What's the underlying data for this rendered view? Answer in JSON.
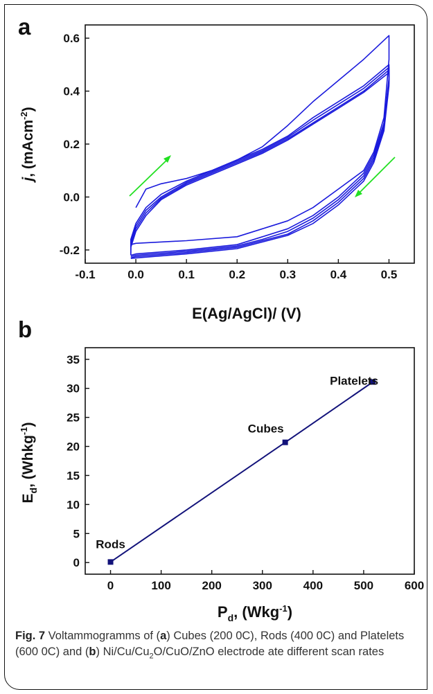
{
  "chart_data": [
    {
      "panel": "a",
      "type": "line",
      "xlabel": "E(Ag/AgCl)/ (V)",
      "ylabel_italic": "j",
      "ylabel_rest": ", (mAcm",
      "ylabel_sup": "-2",
      "ylabel_close": ")",
      "xlim": [
        -0.1,
        0.55
      ],
      "ylim": [
        -0.25,
        0.65
      ],
      "xticks": [
        "-0.1",
        "0.0",
        "0.1",
        "0.2",
        "0.3",
        "0.4",
        "0.5"
      ],
      "xtick_values": [
        -0.1,
        0.0,
        0.1,
        0.2,
        0.3,
        0.4,
        0.5
      ],
      "yticks": [
        "-0.2",
        "0.0",
        "0.2",
        "0.4",
        "0.6"
      ],
      "ytick_values": [
        -0.2,
        0.0,
        0.2,
        0.4,
        0.6
      ],
      "series_color": "#1a1adc",
      "arrow_color": "#22e022",
      "series": [
        {
          "values": [
            [
              0.0,
              -0.04
            ],
            [
              0.02,
              0.03
            ],
            [
              0.05,
              0.05
            ],
            [
              0.1,
              0.07
            ],
            [
              0.15,
              0.1
            ],
            [
              0.2,
              0.14
            ],
            [
              0.25,
              0.19
            ],
            [
              0.3,
              0.27
            ],
            [
              0.35,
              0.36
            ],
            [
              0.4,
              0.44
            ],
            [
              0.45,
              0.52
            ],
            [
              0.5,
              0.61
            ],
            [
              0.5,
              0.52
            ],
            [
              0.49,
              0.3
            ],
            [
              0.47,
              0.17
            ],
            [
              0.45,
              0.1
            ],
            [
              0.4,
              0.03
            ],
            [
              0.35,
              -0.04
            ],
            [
              0.3,
              -0.09
            ],
            [
              0.25,
              -0.12
            ],
            [
              0.2,
              -0.15
            ],
            [
              0.1,
              -0.165
            ],
            [
              0.0,
              -0.175
            ],
            [
              -0.01,
              -0.18
            ]
          ]
        },
        {
          "values": [
            [
              -0.01,
              -0.2
            ],
            [
              -0.01,
              -0.16
            ],
            [
              0.0,
              -0.1
            ],
            [
              0.02,
              -0.04
            ],
            [
              0.05,
              0.01
            ],
            [
              0.1,
              0.06
            ],
            [
              0.15,
              0.1
            ],
            [
              0.2,
              0.14
            ],
            [
              0.25,
              0.18
            ],
            [
              0.3,
              0.23
            ],
            [
              0.35,
              0.3
            ],
            [
              0.4,
              0.36
            ],
            [
              0.45,
              0.42
            ],
            [
              0.5,
              0.5
            ],
            [
              0.5,
              0.45
            ],
            [
              0.49,
              0.28
            ],
            [
              0.47,
              0.16
            ],
            [
              0.45,
              0.09
            ],
            [
              0.4,
              0.0
            ],
            [
              0.35,
              -0.07
            ],
            [
              0.3,
              -0.12
            ],
            [
              0.25,
              -0.15
            ],
            [
              0.2,
              -0.18
            ],
            [
              0.1,
              -0.2
            ],
            [
              0.0,
              -0.215
            ],
            [
              -0.01,
              -0.22
            ]
          ]
        },
        {
          "values": [
            [
              -0.01,
              -0.21
            ],
            [
              -0.01,
              -0.17
            ],
            [
              0.0,
              -0.11
            ],
            [
              0.02,
              -0.05
            ],
            [
              0.05,
              0.0
            ],
            [
              0.1,
              0.055
            ],
            [
              0.15,
              0.095
            ],
            [
              0.2,
              0.135
            ],
            [
              0.25,
              0.175
            ],
            [
              0.3,
              0.225
            ],
            [
              0.35,
              0.29
            ],
            [
              0.4,
              0.35
            ],
            [
              0.45,
              0.41
            ],
            [
              0.5,
              0.49
            ],
            [
              0.5,
              0.44
            ],
            [
              0.49,
              0.27
            ],
            [
              0.47,
              0.15
            ],
            [
              0.45,
              0.08
            ],
            [
              0.4,
              -0.01
            ],
            [
              0.35,
              -0.08
            ],
            [
              0.3,
              -0.13
            ],
            [
              0.25,
              -0.16
            ],
            [
              0.2,
              -0.185
            ],
            [
              0.1,
              -0.205
            ],
            [
              0.0,
              -0.22
            ],
            [
              -0.01,
              -0.225
            ]
          ]
        },
        {
          "values": [
            [
              -0.01,
              -0.215
            ],
            [
              -0.01,
              -0.18
            ],
            [
              0.0,
              -0.12
            ],
            [
              0.02,
              -0.06
            ],
            [
              0.05,
              -0.005
            ],
            [
              0.1,
              0.05
            ],
            [
              0.15,
              0.09
            ],
            [
              0.2,
              0.13
            ],
            [
              0.25,
              0.17
            ],
            [
              0.3,
              0.22
            ],
            [
              0.35,
              0.28
            ],
            [
              0.4,
              0.34
            ],
            [
              0.45,
              0.4
            ],
            [
              0.5,
              0.48
            ],
            [
              0.5,
              0.43
            ],
            [
              0.49,
              0.26
            ],
            [
              0.47,
              0.14
            ],
            [
              0.45,
              0.07
            ],
            [
              0.4,
              -0.02
            ],
            [
              0.35,
              -0.09
            ],
            [
              0.3,
              -0.14
            ],
            [
              0.25,
              -0.165
            ],
            [
              0.2,
              -0.19
            ],
            [
              0.1,
              -0.21
            ],
            [
              0.0,
              -0.225
            ],
            [
              -0.01,
              -0.23
            ]
          ]
        },
        {
          "values": [
            [
              -0.01,
              -0.22
            ],
            [
              -0.01,
              -0.19
            ],
            [
              0.0,
              -0.13
            ],
            [
              0.02,
              -0.07
            ],
            [
              0.05,
              -0.01
            ],
            [
              0.1,
              0.045
            ],
            [
              0.15,
              0.085
            ],
            [
              0.2,
              0.125
            ],
            [
              0.25,
              0.165
            ],
            [
              0.3,
              0.215
            ],
            [
              0.35,
              0.275
            ],
            [
              0.4,
              0.335
            ],
            [
              0.45,
              0.395
            ],
            [
              0.5,
              0.47
            ],
            [
              0.5,
              0.42
            ],
            [
              0.49,
              0.25
            ],
            [
              0.47,
              0.13
            ],
            [
              0.45,
              0.06
            ],
            [
              0.4,
              -0.03
            ],
            [
              0.35,
              -0.1
            ],
            [
              0.3,
              -0.145
            ],
            [
              0.25,
              -0.17
            ],
            [
              0.2,
              -0.195
            ],
            [
              0.1,
              -0.215
            ],
            [
              0.0,
              -0.23
            ],
            [
              -0.01,
              -0.232
            ]
          ]
        }
      ]
    },
    {
      "panel": "b",
      "type": "line",
      "xlabel_main": "P",
      "xlabel_sub": "d",
      "xlabel_rest": ", (Wkg",
      "xlabel_sup": "-1",
      "xlabel_close": ")",
      "ylabel_main": "E",
      "ylabel_sub": "d",
      "ylabel_rest": ", (Whkg",
      "ylabel_sup": "-1",
      "ylabel_close": ")",
      "xlim": [
        -50,
        600
      ],
      "ylim": [
        -2,
        37
      ],
      "xticks": [
        "0",
        "100",
        "200",
        "300",
        "400",
        "500",
        "600"
      ],
      "xtick_values": [
        0,
        100,
        200,
        300,
        400,
        500,
        600
      ],
      "yticks": [
        "0",
        "5",
        "10",
        "15",
        "20",
        "25",
        "30",
        "35"
      ],
      "ytick_values": [
        0,
        5,
        10,
        15,
        20,
        25,
        30,
        35
      ],
      "series_color": "#12127a",
      "points": [
        {
          "label": "Rods",
          "x": 0,
          "y": 0.1
        },
        {
          "label": "Cubes",
          "x": 345,
          "y": 20.7
        },
        {
          "label": "Platelets",
          "x": 518,
          "y": 31.1
        }
      ]
    }
  ],
  "panel_a_letter": "a",
  "panel_b_letter": "b",
  "caption": {
    "fig_label": "Fig. 7",
    "t1": " Voltammogramms of (",
    "b1": "a",
    "t2": ") Cubes (200 0C), Rods (400 0C) and Platelets (600 0C) and (",
    "b2": "b",
    "t3": ") Ni/Cu/Cu",
    "sub": "2",
    "t4": "O/CuO/ZnO electrode ate different scan rates"
  }
}
